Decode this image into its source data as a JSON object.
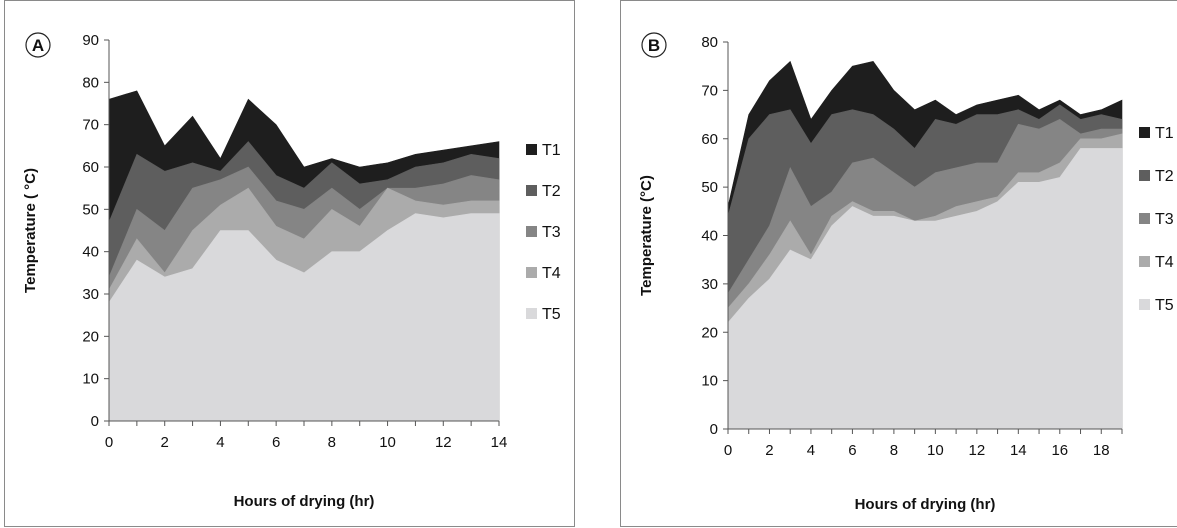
{
  "chart_data": [
    {
      "type": "area",
      "stacked": false,
      "panel_label": "A",
      "xlabel": "Hours of drying (hr)",
      "ylabel": "Temperature ( °C)",
      "xlim": [
        0,
        14
      ],
      "ylim": [
        0,
        90
      ],
      "xticks": [
        0,
        2,
        4,
        6,
        8,
        10,
        12,
        14
      ],
      "yticks": [
        0,
        10,
        20,
        30,
        40,
        50,
        60,
        70,
        80,
        90
      ],
      "grid": false,
      "legend_position": "right",
      "x": [
        0,
        1,
        2,
        3,
        4,
        5,
        6,
        7,
        8,
        9,
        10,
        11,
        12,
        13,
        14
      ],
      "series": [
        {
          "name": "T1",
          "color": "#1e1e1e",
          "values": [
            76,
            78,
            65,
            72,
            62,
            76,
            70,
            60,
            62,
            60,
            61,
            63,
            64,
            65,
            66
          ]
        },
        {
          "name": "T2",
          "color": "#5e5e5e",
          "values": [
            47,
            63,
            59,
            61,
            59,
            66,
            58,
            55,
            61,
            56,
            57,
            60,
            61,
            63,
            62
          ]
        },
        {
          "name": "T3",
          "color": "#858585",
          "values": [
            34,
            50,
            45,
            55,
            57,
            60,
            52,
            50,
            55,
            50,
            55,
            55,
            56,
            58,
            57
          ]
        },
        {
          "name": "T4",
          "color": "#ababab",
          "values": [
            31,
            43,
            35,
            45,
            51,
            55,
            46,
            43,
            50,
            46,
            55,
            52,
            51,
            52,
            52
          ]
        },
        {
          "name": "T5",
          "color": "#d9d9db",
          "values": [
            28,
            38,
            34,
            36,
            45,
            45,
            38,
            35,
            40,
            40,
            45,
            49,
            48,
            49,
            49
          ]
        }
      ]
    },
    {
      "type": "area",
      "stacked": false,
      "panel_label": "B",
      "xlabel": "Hours of drying (hr)",
      "ylabel": "Temperature (°C)",
      "xlim": [
        0,
        19
      ],
      "ylim": [
        0,
        80
      ],
      "xticks": [
        0,
        2,
        4,
        6,
        8,
        10,
        12,
        14,
        16,
        18
      ],
      "yticks": [
        0,
        10,
        20,
        30,
        40,
        50,
        60,
        70,
        80
      ],
      "grid": false,
      "legend_position": "right",
      "x": [
        0,
        1,
        2,
        3,
        4,
        5,
        6,
        7,
        8,
        9,
        10,
        11,
        12,
        13,
        14,
        15,
        16,
        17,
        18,
        19
      ],
      "series": [
        {
          "name": "T1",
          "color": "#1e1e1e",
          "values": [
            46,
            65,
            72,
            76,
            64,
            70,
            75,
            76,
            70,
            66,
            68,
            65,
            67,
            68,
            69,
            66,
            68,
            65,
            66,
            68
          ]
        },
        {
          "name": "T2",
          "color": "#5e5e5e",
          "values": [
            44,
            60,
            65,
            66,
            59,
            65,
            66,
            65,
            62,
            58,
            64,
            63,
            65,
            65,
            66,
            64,
            67,
            64,
            65,
            64
          ]
        },
        {
          "name": "T3",
          "color": "#858585",
          "values": [
            28,
            35,
            42,
            54,
            46,
            49,
            55,
            56,
            53,
            50,
            53,
            54,
            55,
            55,
            63,
            62,
            64,
            61,
            62,
            62
          ]
        },
        {
          "name": "T4",
          "color": "#ababab",
          "values": [
            25,
            30,
            36,
            43,
            36,
            44,
            47,
            45,
            45,
            43,
            44,
            46,
            47,
            48,
            53,
            53,
            55,
            60,
            60,
            61
          ]
        },
        {
          "name": "T5",
          "color": "#d9d9db",
          "values": [
            22,
            27,
            31,
            37,
            35,
            42,
            46,
            44,
            44,
            43,
            43,
            44,
            45,
            47,
            51,
            51,
            52,
            58,
            58,
            58
          ]
        }
      ]
    }
  ]
}
